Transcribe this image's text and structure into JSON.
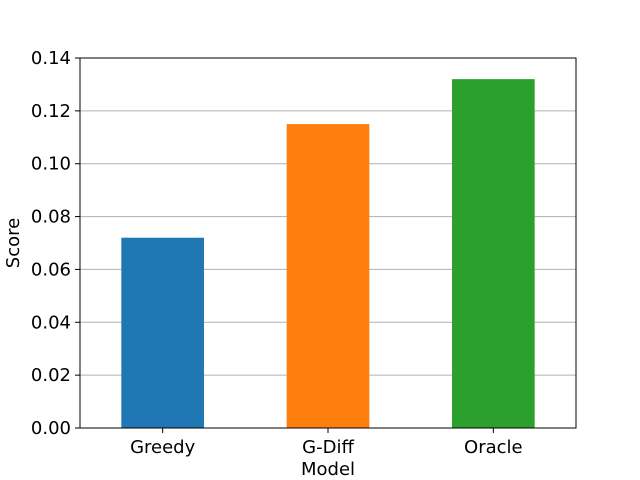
{
  "chart_data": {
    "type": "bar",
    "title": "",
    "xlabel": "Model",
    "ylabel": "Score",
    "categories": [
      "Greedy",
      "G-Diff",
      "Oracle"
    ],
    "values": [
      0.072,
      0.115,
      0.132
    ],
    "colors": [
      "#1f77b4",
      "#ff7f0e",
      "#2ca02c"
    ],
    "ylim": [
      0,
      0.14
    ],
    "yticks": [
      "0.00",
      "0.02",
      "0.04",
      "0.06",
      "0.08",
      "0.10",
      "0.12",
      "0.14"
    ],
    "grid": "horizontal",
    "legend": "none"
  }
}
